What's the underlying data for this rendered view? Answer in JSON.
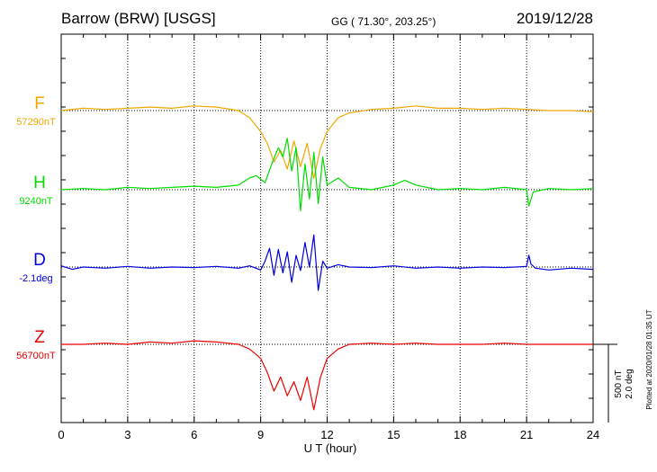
{
  "header": {
    "station": "Barrow (BRW)  [USGS]",
    "coords": "GG ( 71.30°, 203.25°)",
    "date": "2019/12/28"
  },
  "footer": {
    "plotted": "Plotted at 2020/01/28 01:35 UT"
  },
  "scale": {
    "nt": "500 nT",
    "deg": "2.0 deg"
  },
  "colors": {
    "F": "#f0a800",
    "H": "#00dd00",
    "D": "#0000dd",
    "Z": "#ee0000"
  },
  "chart_data": {
    "type": "line",
    "xlabel": "U T (hour)",
    "xlim": [
      0,
      24
    ],
    "x_ticks": [
      "0",
      "3",
      "6",
      "9",
      "12",
      "15",
      "18",
      "21",
      "24"
    ],
    "grid": true,
    "series": [
      {
        "name": "F",
        "baseline_label": "57290nT",
        "baseline": 57290,
        "unit": "nT",
        "x": [
          0,
          1,
          2,
          3,
          4,
          5,
          6,
          7,
          8,
          8.5,
          9,
          9.3,
          9.6,
          9.9,
          10.2,
          10.5,
          10.8,
          11.1,
          11.4,
          11.7,
          12,
          12.5,
          13,
          14,
          15,
          16,
          17,
          18,
          19,
          20,
          21,
          22,
          23,
          24
        ],
        "values": [
          57290,
          57300,
          57295,
          57300,
          57305,
          57300,
          57310,
          57305,
          57290,
          57260,
          57200,
          57150,
          57070,
          57120,
          57040,
          57160,
          57050,
          57150,
          57000,
          57130,
          57200,
          57260,
          57280,
          57295,
          57300,
          57310,
          57300,
          57300,
          57295,
          57300,
          57295,
          57290,
          57290,
          57285
        ]
      },
      {
        "name": "H",
        "baseline_label": "9240nT",
        "baseline": 9240,
        "unit": "nT",
        "x": [
          0,
          1,
          2,
          3,
          4,
          5,
          6,
          7,
          8,
          8.5,
          8.8,
          9.2,
          9.5,
          9.8,
          10,
          10.2,
          10.4,
          10.6,
          10.8,
          11,
          11.2,
          11.4,
          11.6,
          11.8,
          12,
          12.5,
          13,
          14,
          15,
          15.5,
          16,
          17,
          18,
          19,
          20,
          21,
          21.1,
          21.3,
          22,
          23,
          24
        ],
        "values": [
          9240,
          9245,
          9240,
          9250,
          9245,
          9250,
          9255,
          9250,
          9260,
          9290,
          9300,
          9270,
          9350,
          9420,
          9380,
          9460,
          9320,
          9420,
          9150,
          9350,
          9200,
          9400,
          9180,
          9380,
          9260,
          9290,
          9250,
          9240,
          9260,
          9280,
          9260,
          9240,
          9245,
          9240,
          9250,
          9240,
          9170,
          9230,
          9245,
          9240,
          9245
        ]
      },
      {
        "name": "D",
        "baseline_label": "-2.1deg",
        "baseline": -2.1,
        "unit": "deg",
        "x": [
          0,
          0.5,
          1,
          2,
          3,
          4,
          5,
          6,
          7,
          8,
          8.5,
          9,
          9.2,
          9.4,
          9.6,
          9.8,
          10,
          10.2,
          10.4,
          10.6,
          10.8,
          11,
          11.2,
          11.4,
          11.6,
          11.8,
          12,
          12.5,
          13,
          14,
          15,
          16,
          17,
          18,
          19,
          20,
          21,
          21.1,
          21.2,
          21.4,
          22,
          23,
          24
        ],
        "values": [
          -2.08,
          -2.14,
          -2.1,
          -2.12,
          -2.09,
          -2.12,
          -2.1,
          -2.11,
          -2.09,
          -2.12,
          -2.08,
          -2.15,
          -2.0,
          -1.78,
          -2.24,
          -1.8,
          -2.2,
          -1.84,
          -2.36,
          -1.9,
          -2.16,
          -1.68,
          -2.1,
          -1.55,
          -2.5,
          -2.0,
          -2.12,
          -2.06,
          -2.1,
          -2.11,
          -2.08,
          -2.12,
          -2.1,
          -2.12,
          -2.1,
          -2.11,
          -2.09,
          -1.9,
          -2.05,
          -2.12,
          -2.15,
          -2.12,
          -2.14
        ]
      },
      {
        "name": "Z",
        "baseline_label": "56700nT",
        "baseline": 56700,
        "unit": "nT",
        "x": [
          0,
          1,
          2,
          3,
          4,
          5,
          6,
          7,
          8,
          8.5,
          9,
          9.3,
          9.6,
          9.9,
          10.2,
          10.5,
          10.8,
          11.1,
          11.4,
          11.7,
          12,
          12.5,
          13,
          14,
          15,
          16,
          17,
          18,
          19,
          20,
          21,
          22,
          23,
          24
        ],
        "values": [
          56700,
          56700,
          56705,
          56700,
          56710,
          56705,
          56715,
          56710,
          56700,
          56680,
          56640,
          56580,
          56500,
          56560,
          56480,
          56540,
          56460,
          56560,
          56420,
          56560,
          56640,
          56680,
          56700,
          56705,
          56700,
          56705,
          56700,
          56700,
          56700,
          56705,
          56700,
          56700,
          56700,
          56700
        ]
      }
    ]
  }
}
